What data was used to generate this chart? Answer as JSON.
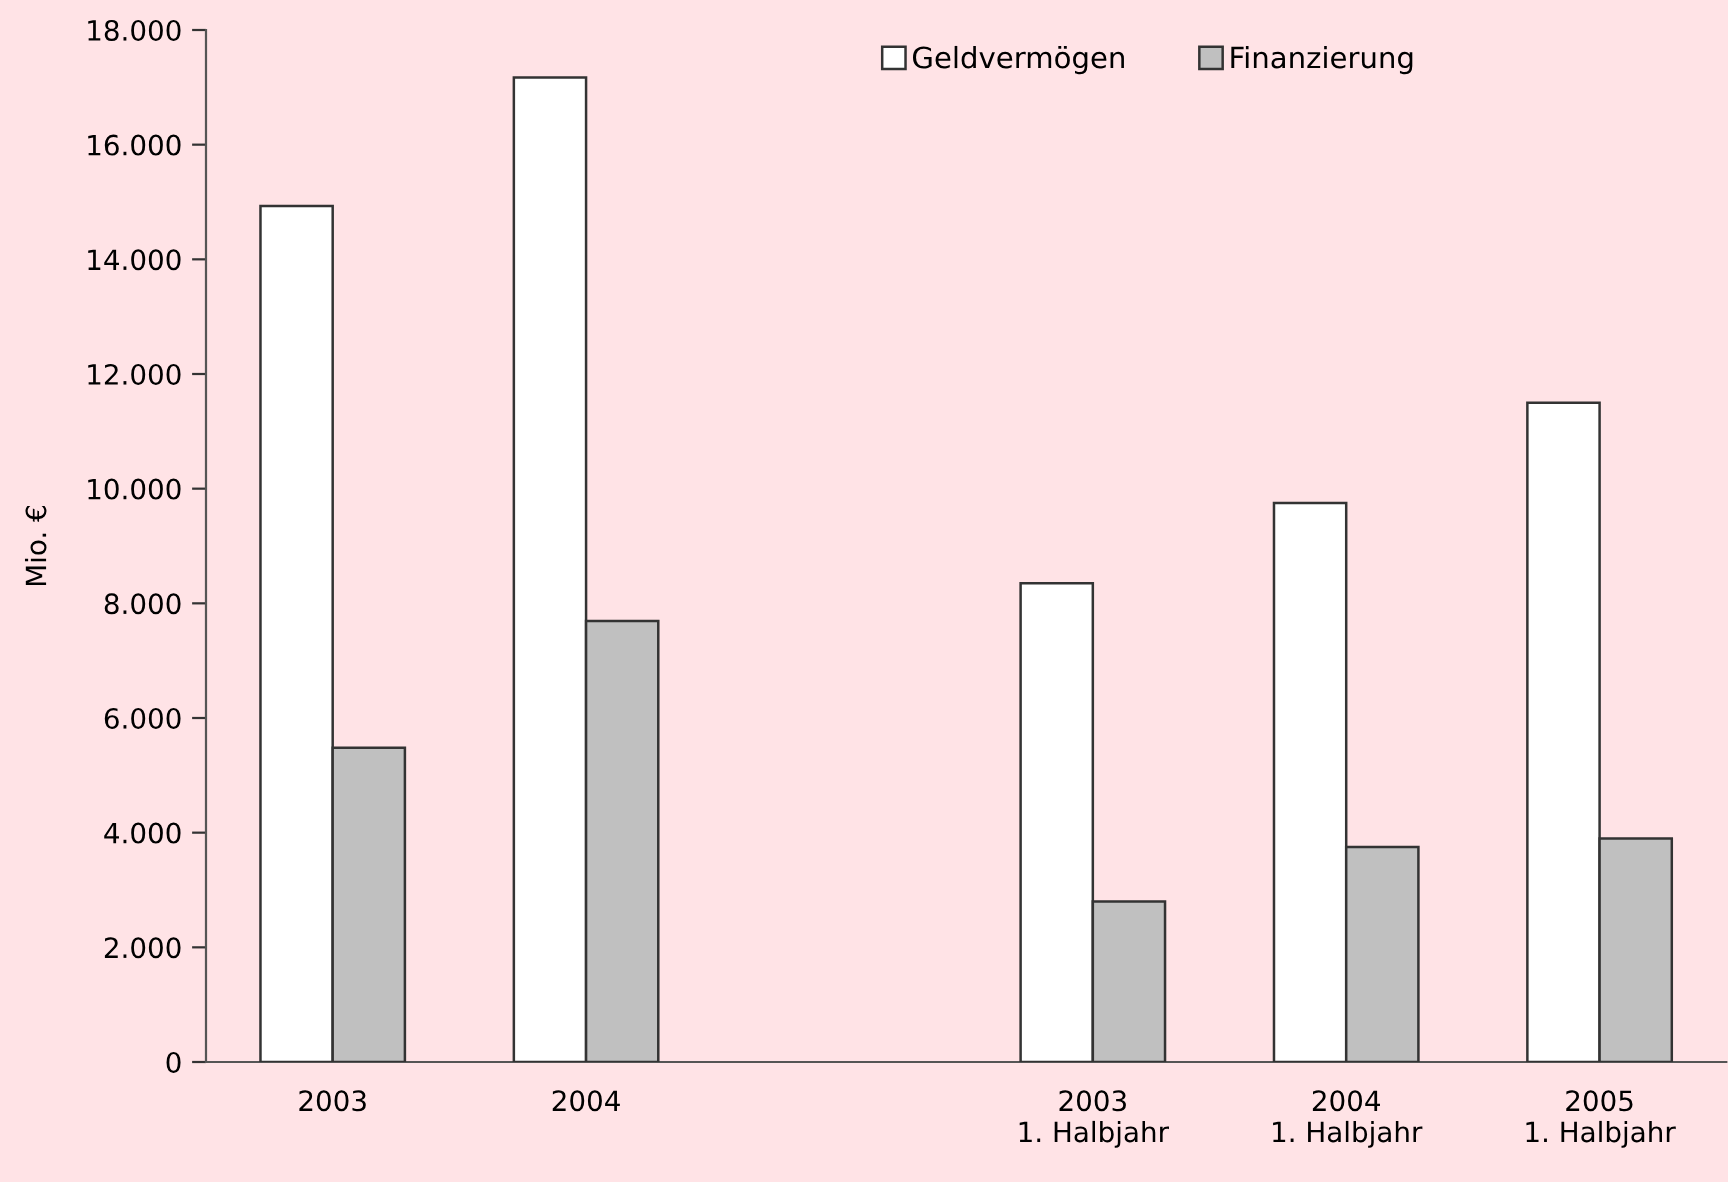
{
  "chart_data": {
    "type": "bar",
    "ylabel": "Mio. €",
    "categories": [
      "2003",
      "2004",
      null,
      "2003\n1. Halbjahr",
      "2004\n1. Halbjahr",
      "2005\n1. Halbjahr"
    ],
    "series": [
      {
        "name": "Geldvermögen",
        "color": "#ffffff",
        "values": [
          14930,
          17170,
          null,
          8350,
          9750,
          11500
        ]
      },
      {
        "name": "Finanzierung",
        "color": "#c0c0c0",
        "values": [
          5480,
          7690,
          null,
          2800,
          3750,
          3900
        ]
      }
    ],
    "ylim": [
      0,
      18000
    ],
    "yticks": [
      0,
      {
        "value": 2000,
        "label": "2.000"
      },
      {
        "value": 4000,
        "label": "4.000"
      },
      {
        "value": 6000,
        "label": "6.000"
      },
      {
        "value": 8000,
        "label": "8.000"
      },
      {
        "value": 10000,
        "label": "10.000"
      },
      {
        "value": 12000,
        "label": "12.000"
      },
      {
        "value": 14000,
        "label": "14.000"
      },
      {
        "value": 16000,
        "label": "16.000"
      },
      {
        "value": 18000,
        "label": "18.000"
      }
    ],
    "grid": false,
    "legend": "top"
  }
}
